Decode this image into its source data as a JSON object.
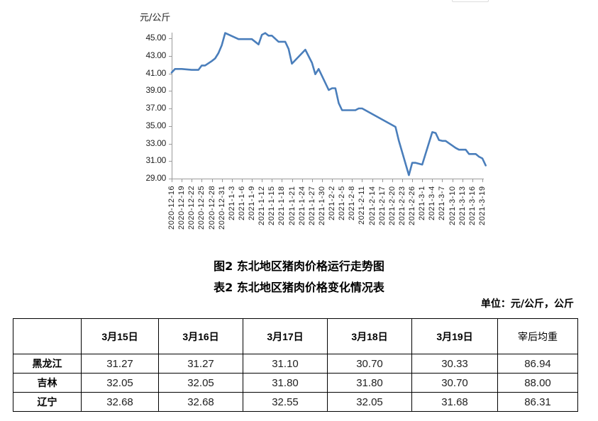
{
  "chart_data": {
    "type": "line",
    "title": "图2 东北地区猪肉价格运行走势图",
    "ylabel": "元/公斤",
    "xlabel": "",
    "ylim": [
      29.0,
      45.0
    ],
    "yticks": [
      "29.00",
      "31.00",
      "33.00",
      "35.00",
      "37.00",
      "39.00",
      "41.00",
      "43.00",
      "45.00"
    ],
    "grid": false,
    "legend": null,
    "line_color": "#4a7ebb",
    "x_tick_labels": [
      "2020-12-16",
      "2020-12-19",
      "2020-12-22",
      "2020-12-25",
      "2020-12-28",
      "2020-12-31",
      "2021-1-3",
      "2021-1-6",
      "2021-1-9",
      "2021-1-12",
      "2021-1-15",
      "2021-1-18",
      "2021-1-21",
      "2021-1-24",
      "2021-1-27",
      "2021-1-30",
      "2021-2-2",
      "2021-2-5",
      "2021-2-8",
      "2021-2-11",
      "2021-2-14",
      "2021-2-17",
      "2021-2-20",
      "2021-2-23",
      "2021-2-26",
      "2021-3-1",
      "2021-3-4",
      "2021-3-7",
      "2021-3-10",
      "2021-3-13",
      "2021-3-16",
      "2021-3-19"
    ],
    "series": [
      {
        "name": "东北地区猪肉价格",
        "points": [
          [
            "2020-12-16",
            41.1
          ],
          [
            "2020-12-17",
            41.5
          ],
          [
            "2020-12-19",
            41.5
          ],
          [
            "2020-12-22",
            41.4
          ],
          [
            "2020-12-24",
            41.4
          ],
          [
            "2020-12-25",
            41.9
          ],
          [
            "2020-12-26",
            41.9
          ],
          [
            "2020-12-28",
            42.4
          ],
          [
            "2020-12-29",
            42.7
          ],
          [
            "2020-12-30",
            43.3
          ],
          [
            "2020-12-31",
            44.2
          ],
          [
            "2021-1-1",
            45.6
          ],
          [
            "2021-1-5",
            44.9
          ],
          [
            "2021-1-9",
            44.9
          ],
          [
            "2021-1-11",
            44.3
          ],
          [
            "2021-1-12",
            45.4
          ],
          [
            "2021-1-13",
            45.6
          ],
          [
            "2021-1-14",
            45.3
          ],
          [
            "2021-1-15",
            45.3
          ],
          [
            "2021-1-17",
            44.6
          ],
          [
            "2021-1-19",
            44.6
          ],
          [
            "2021-1-20",
            43.8
          ],
          [
            "2021-1-21",
            42.1
          ],
          [
            "2021-1-25",
            43.7
          ],
          [
            "2021-1-27",
            42.2
          ],
          [
            "2021-1-28",
            40.9
          ],
          [
            "2021-1-29",
            41.5
          ],
          [
            "2021-2-1",
            39.1
          ],
          [
            "2021-2-2",
            39.3
          ],
          [
            "2021-2-3",
            39.3
          ],
          [
            "2021-2-4",
            37.6
          ],
          [
            "2021-2-5",
            36.8
          ],
          [
            "2021-2-9",
            36.8
          ],
          [
            "2021-2-10",
            37.0
          ],
          [
            "2021-2-11",
            37.0
          ],
          [
            "2021-2-21",
            34.9
          ],
          [
            "2021-2-22",
            33.3
          ],
          [
            "2021-2-25",
            29.4
          ],
          [
            "2021-2-26",
            30.8
          ],
          [
            "2021-2-27",
            30.8
          ],
          [
            "2021-3-1",
            30.6
          ],
          [
            "2021-3-4",
            34.3
          ],
          [
            "2021-3-5",
            34.2
          ],
          [
            "2021-3-6",
            33.4
          ],
          [
            "2021-3-7",
            33.3
          ],
          [
            "2021-3-8",
            33.3
          ],
          [
            "2021-3-11",
            32.5
          ],
          [
            "2021-3-12",
            32.3
          ],
          [
            "2021-3-14",
            32.3
          ],
          [
            "2021-3-15",
            31.8
          ],
          [
            "2021-3-17",
            31.8
          ],
          [
            "2021-3-18",
            31.5
          ],
          [
            "2021-3-19",
            31.3
          ],
          [
            "2021-3-20",
            30.5
          ]
        ]
      }
    ]
  },
  "figure_caption": "图2 东北地区猪肉价格运行走势图",
  "table_caption": "表2 东北地区猪肉价格变化情况表",
  "unit_note": "单位：元/公斤，公斤",
  "table": {
    "headers": [
      "",
      "3月15日",
      "3月16日",
      "3月17日",
      "3月18日",
      "3月19日",
      "宰后均重"
    ],
    "rows": [
      {
        "province": "黑龙江",
        "values": [
          "31.27",
          "31.27",
          "31.10",
          "30.70",
          "30.33",
          "86.94"
        ]
      },
      {
        "province": "吉林",
        "values": [
          "32.05",
          "32.05",
          "31.80",
          "31.80",
          "30.70",
          "88.00"
        ]
      },
      {
        "province": "辽宁",
        "values": [
          "32.68",
          "32.68",
          "32.55",
          "32.05",
          "31.68",
          "86.31"
        ]
      }
    ]
  }
}
